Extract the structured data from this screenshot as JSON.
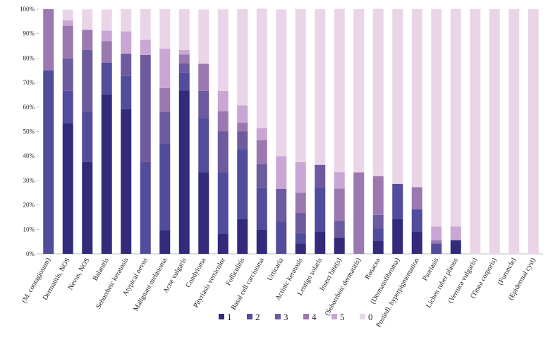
{
  "chart_data": {
    "type": "stacked_bar_percent",
    "categories": [
      "(M. contagiosum)",
      "Dermatitis, NOS",
      "Nevus, NOS",
      "Balanitis",
      "Seborrheic keratosis",
      "Atypical nevus",
      "Malignant melanoma",
      "Acne vulgaris",
      "Condyloma",
      "Pityriasis versicolor",
      "Folliculitis",
      "Basal cell carcinoma",
      "Urticaria",
      "Actinic keratosis",
      "Lentigo solaris",
      "Insect bite(s)",
      "(Seborrheic dermatitis)",
      "Rosacea",
      "(Dermatofibroma)",
      "Postinfl. hyperpigmentation",
      "Psoriasis",
      "Lichen ruber planus",
      "(Verruca vulgaris)",
      "(Tinea corporis)",
      "(Furuncle)",
      "(Epidermal cyst)"
    ],
    "series": [
      {
        "name": "1",
        "color": "#332a7c",
        "values": [
          0,
          53.3,
          37.5,
          65.2,
          59.1,
          0,
          9.7,
          66.7,
          33.3,
          8.3,
          14.3,
          9.8,
          0,
          4.2,
          9.1,
          6.7,
          0,
          5.3,
          14.3,
          9.1,
          0,
          5.6,
          0,
          0,
          0,
          0
        ]
      },
      {
        "name": "2",
        "color": "#524c9c",
        "values": [
          75,
          13.3,
          20.8,
          13.0,
          13.6,
          37.5,
          35.5,
          7.4,
          22.2,
          25,
          28.6,
          17.1,
          13.3,
          4.2,
          18.2,
          0,
          0,
          5.3,
          14.3,
          9.1,
          4.2,
          0,
          0,
          0,
          0,
          0
        ]
      },
      {
        "name": "3",
        "color": "#6e5a9e",
        "values": [
          0,
          13.3,
          25,
          0,
          9.1,
          43.8,
          12.9,
          3.7,
          11.1,
          16.7,
          7.1,
          9.8,
          13.3,
          8.3,
          9.1,
          6.7,
          0,
          5.3,
          0,
          0,
          0,
          0,
          0,
          0,
          0,
          0
        ]
      },
      {
        "name": "4",
        "color": "#9c78b0",
        "values": [
          25,
          13.3,
          8.3,
          8.7,
          0,
          0,
          9.7,
          3.7,
          11.1,
          8.3,
          3.6,
          9.8,
          0,
          8.3,
          0,
          13.3,
          33.3,
          15.8,
          0,
          9.1,
          1.4,
          0,
          0,
          0,
          0,
          0
        ]
      },
      {
        "name": "5",
        "color": "#c9a6d3",
        "values": [
          0,
          2.2,
          0,
          4.3,
          9.1,
          6.2,
          16.1,
          1.8,
          0,
          8.3,
          7.1,
          4.9,
          13.3,
          12.5,
          0,
          6.7,
          0,
          0,
          0,
          0,
          5.5,
          5.6,
          0,
          0,
          0,
          0
        ]
      },
      {
        "name": "0",
        "color": "#ead5e8",
        "values": [
          0,
          4.4,
          8.3,
          8.7,
          9.1,
          12.5,
          16.1,
          16.7,
          22.2,
          33.3,
          39.3,
          48.8,
          60,
          62.5,
          63.6,
          66.7,
          66.7,
          68.4,
          71.4,
          72.7,
          88.9,
          88.9,
          100,
          100,
          100,
          100
        ]
      }
    ],
    "ylim": [
      0,
      100
    ],
    "yticks": [
      {
        "value": 0,
        "label": "0%"
      },
      {
        "value": 10,
        "label": "10%"
      },
      {
        "value": 20,
        "label": "20%"
      },
      {
        "value": 30,
        "label": "30%"
      },
      {
        "value": 40,
        "label": "40%"
      },
      {
        "value": 50,
        "label": "50%"
      },
      {
        "value": 60,
        "label": "60%"
      },
      {
        "value": 70,
        "label": "70%"
      },
      {
        "value": 80,
        "label": "80%"
      },
      {
        "value": 90,
        "label": "90%"
      },
      {
        "value": 100,
        "label": "100%"
      }
    ],
    "legend": "bottom"
  }
}
